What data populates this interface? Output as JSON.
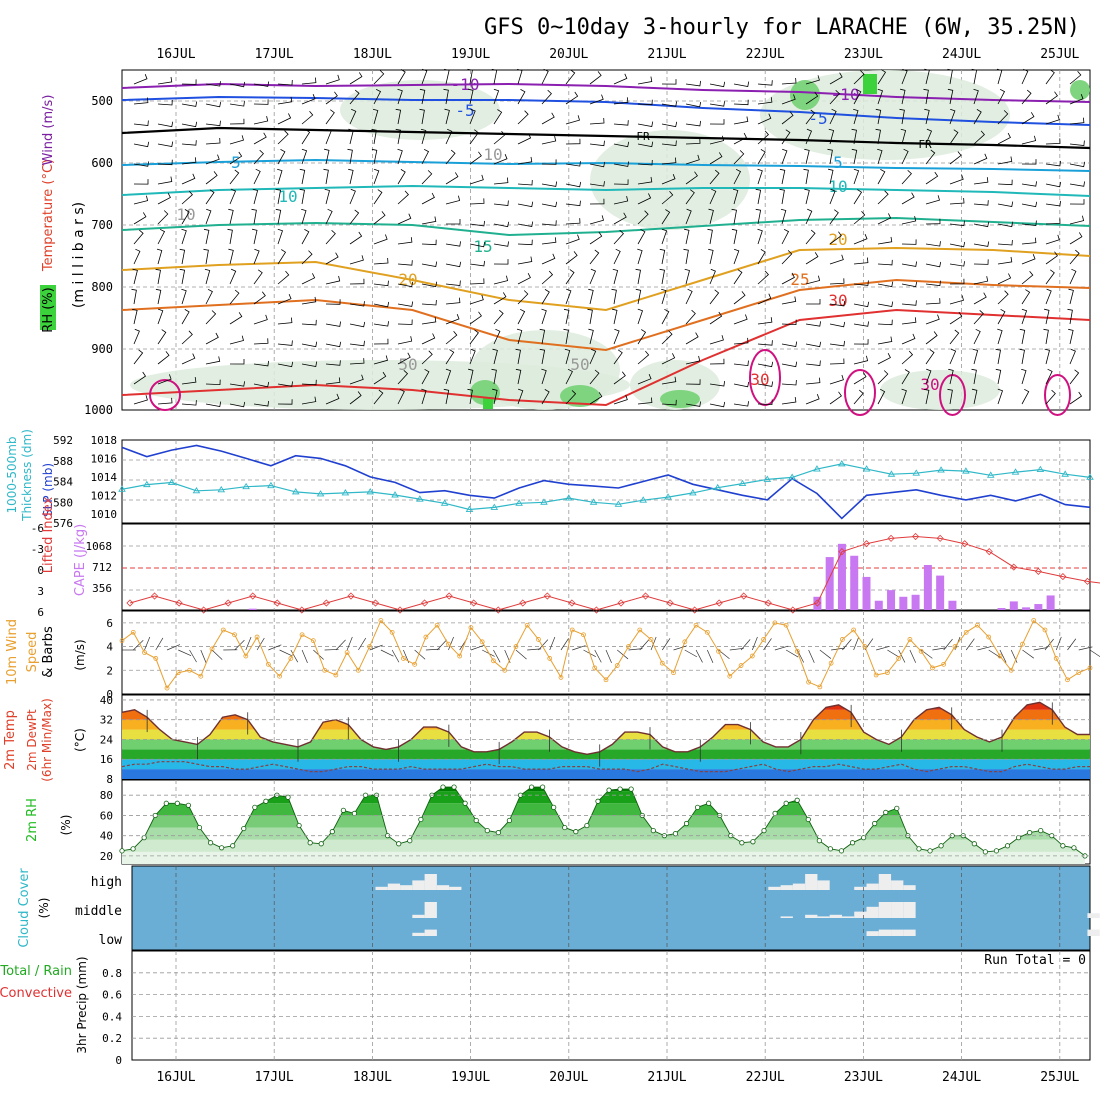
{
  "title": "GFS 0~10day 3-hourly for LARACHE (6W, 35.25N)",
  "dates": [
    "16JUL",
    "17JUL",
    "18JUL",
    "19JUL",
    "20JUL",
    "21JUL",
    "22JUL",
    "23JUL",
    "24JUL",
    "25JUL"
  ],
  "colors": {
    "temperature_label": "#e0402a",
    "wind_label": "#7a1fa0",
    "rh_green": "#3cd23c",
    "cape": "#c878f0",
    "lifted": "#e03c3c",
    "thickness": "#30b8c8",
    "slp": "#2040d0",
    "wind10": "#e8a030",
    "cloud_bg": "#6aaed6",
    "cloud_fill": "#eeeeee",
    "rh2m": "#22bb22"
  },
  "panels": {
    "upper_air": {
      "ylabel_left": [
        "RH (%)",
        "Temperature (°C)",
        "Wind (m/s)"
      ],
      "ylabel_axis": "(m i l l i b a r s)",
      "yticks": [
        "500",
        "600",
        "700",
        "800",
        "900",
        "1000"
      ],
      "contour_labels": [
        "-10",
        "-5",
        "FR",
        "5",
        "10",
        "15",
        "20",
        "25",
        "30",
        "-10",
        "-5",
        "FR",
        "5",
        "10",
        "20",
        "10",
        "10",
        "30",
        "30",
        "50",
        "50"
      ]
    },
    "pressure": {
      "ylabel": [
        "1000-500mb",
        "Thickness (dm)",
        "SLP (mb)"
      ],
      "yticks_left": [
        "592",
        "588",
        "584",
        "580",
        "576"
      ],
      "yticks_right": [
        "1018",
        "1016",
        "1014",
        "1012",
        "1010"
      ]
    },
    "cape_li": {
      "ylabel": [
        "Lifted Index",
        "CAPE (J/kg)"
      ],
      "yticks_left": [
        "-6",
        "-3",
        "0",
        "3",
        "6"
      ],
      "yticks_right": [
        "1068",
        "712",
        "356"
      ]
    },
    "wind10m": {
      "ylabel": [
        "10m Wind",
        "Speed",
        "& Barbs",
        "(m/s)"
      ],
      "yticks": [
        "6",
        "4",
        "2",
        "0"
      ]
    },
    "temp2m": {
      "ylabel": [
        "2m Temp",
        "2m DewPt",
        "(6hr Min/Max)",
        "(°C)"
      ],
      "yticks": [
        "40",
        "32",
        "24",
        "16",
        "8"
      ]
    },
    "rh2m": {
      "ylabel": [
        "2m RH",
        "(%)"
      ],
      "yticks": [
        "80",
        "60",
        "40",
        "20"
      ]
    },
    "cloud": {
      "ylabel": [
        "Cloud Cover",
        "(%)"
      ],
      "levels": [
        "high",
        "middle",
        "low"
      ]
    },
    "precip": {
      "ylabel": [
        "Total / Rain",
        "Convective",
        "3hr Precip (mm)"
      ],
      "yticks": [
        "0.8",
        "0.6",
        "0.4",
        "0.2",
        "0"
      ],
      "run_total": "Run Total = 0"
    }
  },
  "chart_data": [
    {
      "type": "line",
      "name": "1000-500mb thickness / SLP",
      "x": [
        "15JUL12",
        "15JUL18",
        "16JUL00",
        "16JUL06",
        "16JUL12",
        "16JUL18",
        "17JUL00",
        "17JUL06",
        "17JUL12",
        "17JUL18",
        "18JUL00",
        "18JUL06",
        "18JUL12",
        "18JUL18",
        "19JUL00",
        "19JUL06",
        "19JUL12",
        "19JUL18",
        "20JUL00",
        "20JUL06",
        "20JUL12",
        "20JUL18",
        "21JUL00",
        "21JUL06",
        "21JUL12",
        "21JUL18",
        "22JUL00",
        "22JUL06",
        "22JUL12",
        "22JUL18",
        "23JUL00",
        "23JUL06",
        "23JUL12",
        "23JUL18",
        "24JUL00",
        "24JUL06",
        "24JUL12",
        "24JUL18",
        "25JUL00",
        "25JUL06"
      ],
      "series": [
        {
          "name": "SLP",
          "values": [
            1017.2,
            1016.2,
            1016.9,
            1017.4,
            1016.8,
            1016.0,
            1015.2,
            1016.3,
            1016.0,
            1015.2,
            1014.0,
            1013.4,
            1012.3,
            1012.5,
            1012.0,
            1011.7,
            1012.8,
            1013.6,
            1013.2,
            1013.0,
            1012.8,
            1013.5,
            1014.2,
            1013.2,
            1012.6,
            1012.0,
            1011.5,
            1013.8,
            1012.2,
            1009.5,
            1012.0,
            1012.3,
            1012.6,
            1012.0,
            1011.5,
            1012.0,
            1011.4,
            1012.1,
            1011.0,
            1010.7
          ]
        },
        {
          "name": "Thickness",
          "values": [
            582.5,
            583.4,
            583.8,
            582.2,
            582.4,
            583.0,
            583.2,
            582.0,
            581.6,
            581.8,
            582.0,
            581.4,
            580.6,
            579.8,
            578.6,
            579.0,
            579.8,
            580.0,
            580.8,
            580.0,
            579.6,
            580.4,
            581.0,
            581.8,
            582.8,
            583.6,
            584.4,
            584.8,
            586.4,
            587.4,
            586.4,
            585.4,
            585.6,
            586.2,
            586.0,
            585.2,
            585.8,
            586.3,
            585.4,
            584.8
          ]
        }
      ],
      "ylim_left": [
        576,
        592
      ],
      "ylim_right": [
        1009,
        1018
      ]
    },
    {
      "type": "bar",
      "name": "CAPE / Lifted Index",
      "x": [
        "16JUL18",
        "22JUL12",
        "22JUL15",
        "22JUL18",
        "22JUL21",
        "23JUL00",
        "23JUL03",
        "23JUL06",
        "23JUL09",
        "23JUL12",
        "23JUL15",
        "23JUL18",
        "23JUL21",
        "24JUL09",
        "24JUL12",
        "24JUL15",
        "24JUL18",
        "24JUL21"
      ],
      "series": [
        {
          "name": "CAPE",
          "values": [
            20,
            200,
            800,
            1000,
            820,
            500,
            140,
            300,
            200,
            230,
            680,
            520,
            140,
            30,
            130,
            40,
            90,
            220
          ]
        }
      ],
      "lifted_index_range": [
        -6,
        6
      ],
      "ylim_right": [
        0,
        1300
      ]
    },
    {
      "type": "line",
      "name": "10m wind speed",
      "x_start": "15JUL12",
      "x_step_hours": 3,
      "series": [
        {
          "name": "Wind speed",
          "values": [
            4.5,
            5.2,
            3.5,
            3.0,
            0.5,
            1.8,
            2.0,
            1.5,
            3.8,
            5.4,
            5.0,
            3.2,
            4.8,
            2.5,
            1.5,
            3.0,
            5.0,
            4.5,
            2.0,
            1.6,
            3.5,
            2.0,
            4.0,
            6.2,
            5.2,
            3.0,
            2.5,
            4.8,
            5.8,
            4.2,
            3.2,
            5.6,
            4.4,
            2.8,
            2.0,
            4.0,
            5.8,
            4.6,
            3.0,
            1.4,
            5.4,
            5.0,
            2.2,
            1.2,
            2.4,
            4.0,
            5.4,
            4.6,
            2.6,
            1.8,
            4.4,
            5.8,
            5.2,
            3.6,
            1.5,
            2.4,
            3.2,
            4.6,
            6.0,
            5.8,
            3.6,
            1.0,
            0.6,
            2.6,
            4.6,
            5.4,
            4.0,
            1.6,
            1.8,
            3.0,
            4.6,
            3.6,
            2.2,
            2.5,
            4.0,
            5.2,
            5.8,
            4.8,
            3.2,
            2.0,
            4.2,
            6.2,
            5.4,
            3.0,
            1.2,
            1.8,
            2.2
          ]
        }
      ],
      "ylim": [
        0,
        7
      ]
    },
    {
      "type": "area",
      "name": "2m temperature / dewpoint",
      "x_start": "15JUL12",
      "x_step_hours": 3,
      "series": [
        {
          "name": "2m Temp",
          "values": [
            35,
            36,
            33,
            28,
            24,
            23,
            22,
            26,
            33,
            34,
            32,
            25,
            23,
            22,
            21,
            23,
            31,
            32,
            30,
            24,
            21,
            20,
            21,
            24,
            29,
            29,
            27,
            21,
            19,
            19,
            20,
            23,
            27,
            27,
            25,
            21,
            19,
            18,
            19,
            22,
            27,
            27,
            26,
            21,
            19,
            19,
            21,
            25,
            30,
            30,
            28,
            23,
            21,
            21,
            24,
            32,
            37,
            38,
            35,
            27,
            24,
            22,
            25,
            32,
            36,
            37,
            34,
            28,
            25,
            23,
            25,
            33,
            38,
            39,
            36,
            29,
            26,
            26
          ]
        },
        {
          "name": "2m DewPt",
          "values": [
            13,
            14,
            14,
            15,
            15,
            15,
            14,
            13,
            13,
            12,
            12,
            13,
            14,
            13,
            12,
            11,
            11,
            12,
            13,
            13,
            12,
            12,
            12,
            13,
            12,
            12,
            12,
            12,
            13,
            14,
            13,
            13,
            12,
            12,
            12,
            13,
            13,
            13,
            12,
            12,
            12,
            11,
            12,
            14,
            13,
            12,
            11,
            11,
            11,
            12,
            13,
            14,
            12,
            11,
            12,
            13,
            13,
            14,
            13,
            12,
            12,
            13,
            14,
            12,
            11,
            12,
            13,
            13,
            12,
            11,
            11,
            13,
            14,
            13,
            12,
            12,
            13,
            13
          ]
        }
      ],
      "ylim": [
        8,
        42
      ]
    },
    {
      "type": "area",
      "name": "2m RH",
      "x_start": "15JUL12",
      "x_step_hours": 3,
      "series": [
        {
          "name": "2m RH",
          "values": [
            25,
            27,
            38,
            60,
            72,
            72,
            70,
            48,
            33,
            28,
            30,
            47,
            68,
            74,
            80,
            78,
            50,
            33,
            32,
            44,
            65,
            62,
            80,
            80,
            40,
            32,
            35,
            56,
            80,
            88,
            88,
            72,
            55,
            45,
            43,
            55,
            80,
            88,
            88,
            68,
            48,
            44,
            50,
            74,
            85,
            86,
            86,
            60,
            45,
            40,
            42,
            52,
            68,
            72,
            60,
            40,
            33,
            34,
            45,
            62,
            72,
            75,
            56,
            35,
            27,
            25,
            33,
            38,
            52,
            63,
            67,
            40,
            27,
            25,
            30,
            40,
            40,
            32,
            24,
            25,
            30,
            38,
            43,
            45,
            40,
            30,
            28,
            20
          ]
        }
      ],
      "ylim": [
        12,
        95
      ]
    },
    {
      "type": "bar",
      "name": "Cloud cover",
      "x": [
        "18JUL00",
        "18JUL03",
        "18JUL06",
        "18JUL09",
        "18JUL12",
        "18JUL15",
        "18JUL18",
        "22JUL00",
        "22JUL03",
        "22JUL06",
        "22JUL09",
        "22JUL12",
        "22JUL15",
        "22JUL18",
        "22JUL21",
        "23JUL00",
        "23JUL03",
        "23JUL06",
        "23JUL09",
        "25JUL06"
      ],
      "series": [
        {
          "name": "high",
          "values": [
            20,
            40,
            30,
            60,
            100,
            30,
            20,
            20,
            30,
            40,
            100,
            60,
            0,
            0,
            20,
            40,
            100,
            60,
            30,
            0
          ]
        },
        {
          "name": "middle",
          "values": [
            0,
            0,
            0,
            20,
            100,
            0,
            0,
            0,
            10,
            0,
            20,
            10,
            20,
            10,
            40,
            70,
            100,
            100,
            100,
            30
          ]
        },
        {
          "name": "low",
          "values": [
            0,
            0,
            0,
            20,
            40,
            0,
            0,
            0,
            0,
            0,
            0,
            0,
            0,
            0,
            0,
            30,
            40,
            40,
            40,
            40
          ]
        }
      ],
      "levels": [
        "low",
        "middle",
        "high"
      ]
    },
    {
      "type": "bar",
      "name": "3hr precip",
      "x": [
        "16JUL",
        "17JUL",
        "18JUL",
        "19JUL",
        "20JUL",
        "21JUL",
        "22JUL",
        "23JUL",
        "24JUL",
        "25JUL"
      ],
      "series": [
        {
          "name": "Total",
          "values": [
            0,
            0,
            0,
            0,
            0,
            0,
            0,
            0,
            0,
            0
          ]
        }
      ],
      "ylim": [
        0,
        1.0
      ]
    }
  ]
}
